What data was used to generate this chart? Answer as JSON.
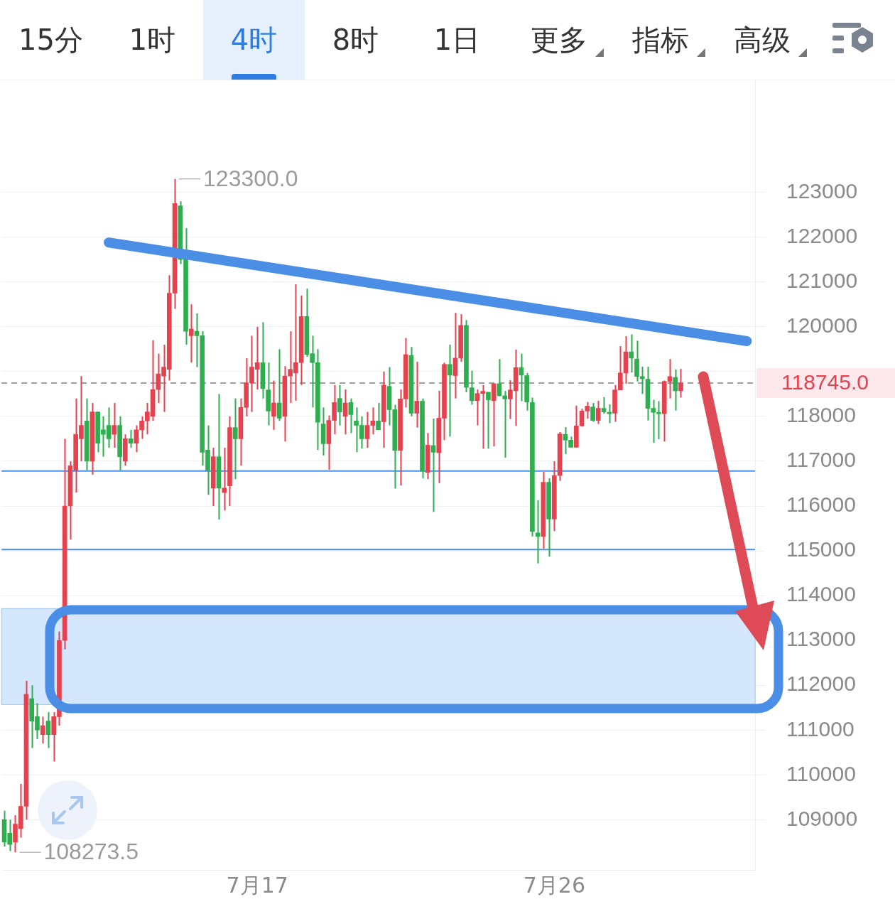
{
  "chart_data": {
    "type": "candlestick",
    "annotations": [
      "15分",
      "1时",
      "4时",
      "8时",
      "1日",
      "更多",
      "指标",
      "高级",
      "123300.0",
      "108273.5"
    ],
    "categories": [
      null,
      null,
      null,
      null,
      null,
      null,
      null,
      null,
      null,
      null,
      null,
      null,
      null,
      null,
      null,
      null,
      null,
      null,
      null,
      null,
      null,
      null,
      null,
      null,
      null,
      null,
      null,
      null,
      null,
      null,
      null,
      null,
      null,
      null,
      null,
      null,
      null,
      null,
      null,
      null,
      null,
      null,
      null,
      null,
      null,
      null,
      "7月17",
      null,
      null,
      null,
      null,
      null,
      null,
      null,
      null,
      null,
      null,
      null,
      null,
      null,
      null,
      null,
      null,
      null,
      null,
      null,
      null,
      null,
      null,
      null,
      null,
      null,
      null,
      null,
      null,
      null,
      null,
      null,
      null,
      null,
      null,
      null,
      null,
      null,
      null,
      null,
      null,
      null,
      null,
      null,
      null,
      null,
      null,
      null,
      null,
      null,
      null,
      null,
      null,
      null,
      "7月26",
      null,
      null,
      null,
      null,
      null,
      null,
      null,
      null,
      null,
      null,
      null,
      null,
      null,
      null,
      null,
      null,
      null,
      null,
      null,
      null,
      null,
      null,
      null,
      null,
      null,
      null,
      null,
      null,
      null,
      null,
      null,
      null,
      null,
      null,
      null,
      null
    ],
    "ohlc": [
      [
        109000,
        109200,
        108400,
        108500
      ],
      [
        108700,
        109000,
        108300,
        108450
      ],
      [
        108500,
        109100,
        108273.5,
        108900
      ],
      [
        108800,
        109800,
        108600,
        109300
      ],
      [
        109300,
        112100,
        109000,
        111800
      ],
      [
        111700,
        112000,
        110600,
        111200
      ],
      [
        111300,
        111600,
        110800,
        111000
      ],
      [
        110900,
        111300,
        110700,
        111100
      ],
      [
        111200,
        111400,
        110600,
        110900
      ],
      [
        110900,
        111400,
        110300,
        111300
      ],
      [
        111300,
        113200,
        111100,
        113000
      ],
      [
        113000,
        117500,
        112800,
        116000
      ],
      [
        116000,
        117000,
        115250,
        116900
      ],
      [
        116800,
        118400,
        116300,
        117600
      ],
      [
        117500,
        118900,
        117000,
        117800
      ],
      [
        117900,
        118400,
        116800,
        117000
      ],
      [
        117000,
        118300,
        116700,
        118100
      ],
      [
        118100,
        118100,
        117200,
        117400
      ],
      [
        117700,
        118000,
        117100,
        117600
      ],
      [
        117800,
        118200,
        117300,
        117500
      ],
      [
        117600,
        118300,
        117300,
        117800
      ],
      [
        117800,
        118000,
        116800,
        117100
      ],
      [
        117000,
        117600,
        116900,
        117500
      ],
      [
        117500,
        117700,
        117300,
        117400
      ],
      [
        117400,
        117800,
        117200,
        117700
      ],
      [
        117700,
        118000,
        117500,
        117900
      ],
      [
        117900,
        118300,
        117600,
        118100
      ],
      [
        118000,
        119700,
        117900,
        118600
      ],
      [
        118600,
        119400,
        118300,
        118950
      ],
      [
        118900,
        119600,
        118100,
        119100
      ],
      [
        119050,
        121150,
        118800,
        120750
      ],
      [
        120750,
        123300,
        120400,
        122750
      ],
      [
        122700,
        122800,
        121400,
        121500
      ],
      [
        121700,
        122200,
        119600,
        119900
      ],
      [
        119800,
        120500,
        119200,
        119950
      ],
      [
        119900,
        120300,
        119100,
        119800
      ],
      [
        119800,
        119900,
        116900,
        117200
      ],
      [
        117250,
        117800,
        116250,
        116800
      ],
      [
        116400,
        117300,
        116000,
        117100
      ],
      [
        117100,
        118500,
        115700,
        116400
      ],
      [
        116300,
        117300,
        115900,
        116400
      ],
      [
        116450,
        118000,
        116000,
        117750
      ],
      [
        117750,
        118400,
        116600,
        117500
      ],
      [
        117500,
        118400,
        116900,
        118200
      ],
      [
        118200,
        119300,
        118000,
        118750
      ],
      [
        118750,
        119800,
        118100,
        119100
      ],
      [
        119050,
        120000,
        118600,
        119200
      ],
      [
        119200,
        120100,
        118400,
        118620
      ],
      [
        118590,
        119200,
        117800,
        118120
      ],
      [
        118000,
        118800,
        117700,
        118300
      ],
      [
        118300,
        119500,
        117900,
        117960
      ],
      [
        118000,
        119120,
        117440,
        118900
      ],
      [
        118900,
        119900,
        118300,
        119050
      ],
      [
        118970,
        120950,
        118350,
        119200
      ],
      [
        119200,
        120700,
        118700,
        120230
      ],
      [
        120230,
        120850,
        119330,
        119380
      ],
      [
        119400,
        119800,
        118200,
        119200
      ],
      [
        119200,
        119500,
        117250,
        117870
      ],
      [
        117830,
        118200,
        117130,
        117390
      ],
      [
        117390,
        118020,
        116810,
        117910
      ],
      [
        117910,
        118700,
        117600,
        118310
      ],
      [
        118400,
        118700,
        117800,
        118100
      ],
      [
        118000,
        118600,
        117600,
        118300
      ],
      [
        118310,
        118400,
        117630,
        118040
      ],
      [
        117900,
        118200,
        117200,
        117800
      ],
      [
        117800,
        118000,
        117280,
        117500
      ],
      [
        117500,
        118100,
        117300,
        117800
      ],
      [
        117800,
        118200,
        117600,
        117900
      ],
      [
        117900,
        118300,
        117700,
        117700
      ],
      [
        117880,
        119000,
        117300,
        118700
      ],
      [
        118670,
        119100,
        117800,
        118150
      ],
      [
        118150,
        118260,
        116390,
        117240
      ],
      [
        117240,
        118600,
        116460,
        118390
      ],
      [
        118390,
        119750,
        118200,
        119380
      ],
      [
        119360,
        119550,
        118000,
        118070
      ],
      [
        118070,
        119220,
        117750,
        118340
      ],
      [
        118340,
        118400,
        116620,
        116780
      ],
      [
        116750,
        117630,
        116600,
        117360
      ],
      [
        117350,
        117950,
        115870,
        117200
      ],
      [
        117190,
        118570,
        116510,
        117960
      ],
      [
        117960,
        119200,
        117470,
        119160
      ],
      [
        119160,
        119600,
        117550,
        118920
      ],
      [
        118910,
        120310,
        118400,
        119300
      ],
      [
        119300,
        120280,
        119220,
        120030
      ],
      [
        120030,
        120150,
        118540,
        118650
      ],
      [
        118640,
        119020,
        118260,
        118350
      ],
      [
        118350,
        118600,
        117800,
        118510
      ],
      [
        118510,
        118700,
        117280,
        118560
      ],
      [
        118540,
        118540,
        117280,
        118370
      ],
      [
        118350,
        118730,
        117330,
        118730
      ],
      [
        118730,
        119280,
        118450,
        118460
      ],
      [
        118460,
        118570,
        117080,
        118390
      ],
      [
        118390,
        118810,
        117940,
        118590
      ],
      [
        118570,
        119490,
        117790,
        119090
      ],
      [
        119090,
        119400,
        118340,
        118920
      ],
      [
        118910,
        118970,
        118130,
        118320
      ],
      [
        118310,
        118420,
        115320,
        115430
      ],
      [
        115400,
        116130,
        114720,
        115320
      ],
      [
        115320,
        116760,
        115050,
        116530
      ],
      [
        116530,
        116620,
        114870,
        115710
      ],
      [
        115710,
        117000,
        115440,
        116680
      ],
      [
        116680,
        117650,
        116560,
        117610
      ],
      [
        117600,
        117760,
        117160,
        117470
      ],
      [
        117470,
        117550,
        117310,
        117310
      ],
      [
        117310,
        118240,
        117310,
        117790
      ],
      [
        117790,
        118170,
        117770,
        118120
      ],
      [
        118120,
        118320,
        117950,
        118230
      ],
      [
        118210,
        118300,
        117880,
        117910
      ],
      [
        117910,
        118350,
        117830,
        118180
      ],
      [
        118180,
        118430,
        118060,
        118100
      ],
      [
        118080,
        118270,
        117850,
        118060
      ],
      [
        118070,
        118700,
        117880,
        118590
      ],
      [
        118590,
        119570,
        118590,
        118970
      ],
      [
        118970,
        119790,
        118730,
        119440
      ],
      [
        119440,
        119830,
        118980,
        119300
      ],
      [
        119280,
        119690,
        118780,
        118890
      ],
      [
        118890,
        119110,
        118500,
        118840
      ],
      [
        118830,
        119110,
        117910,
        118180
      ],
      [
        118180,
        118370,
        117410,
        118090
      ],
      [
        118090,
        118340,
        117490,
        118060
      ],
      [
        118060,
        118800,
        117440,
        118780
      ],
      [
        118780,
        119280,
        118400,
        118890
      ],
      [
        118870,
        119050,
        118130,
        118570
      ],
      [
        118570,
        119060,
        118420,
        118745
      ],
      null,
      null,
      null,
      null,
      null,
      null,
      null,
      null,
      null,
      null,
      null,
      null,
      null
    ],
    "colors": [
      "#2fae4f",
      "#2fae4f",
      "#e5424f",
      "#e5424f",
      "#e5424f",
      "#2fae4f",
      "#2fae4f",
      "#e5424f",
      "#2fae4f",
      "#e5424f",
      "#e5424f",
      "#e5424f",
      "#e5424f",
      "#e5424f",
      "#e5424f",
      "#2fae4f",
      "#e5424f",
      "#2fae4f",
      "#2fae4f",
      "#2fae4f",
      "#e5424f",
      "#2fae4f",
      "#e5424f",
      "#2fae4f",
      "#e5424f",
      "#e5424f",
      "#e5424f",
      "#e5424f",
      "#e5424f",
      "#e5424f",
      "#e5424f",
      "#e5424f",
      "#2fae4f",
      "#2fae4f",
      "#e5424f",
      "#2fae4f",
      "#2fae4f",
      "#2fae4f",
      "#e5424f",
      "#2fae4f",
      "#e5424f",
      "#e5424f",
      "#2fae4f",
      "#e5424f",
      "#e5424f",
      "#e5424f",
      "#e5424f",
      "#2fae4f",
      "#2fae4f",
      "#e5424f",
      "#2fae4f",
      "#e5424f",
      "#e5424f",
      "#e5424f",
      "#e5424f",
      "#2fae4f",
      "#2fae4f",
      "#2fae4f",
      "#2fae4f",
      "#e5424f",
      "#e5424f",
      "#2fae4f",
      "#e5424f",
      "#2fae4f",
      "#2fae4f",
      "#2fae4f",
      "#e5424f",
      "#e5424f",
      "#2fae4f",
      "#e5424f",
      "#2fae4f",
      "#2fae4f",
      "#e5424f",
      "#e5424f",
      "#2fae4f",
      "#e5424f",
      "#2fae4f",
      "#e5424f",
      "#2fae4f",
      "#e5424f",
      "#e5424f",
      "#2fae4f",
      "#e5424f",
      "#e5424f",
      "#2fae4f",
      "#2fae4f",
      "#e5424f",
      "#e5424f",
      "#2fae4f",
      "#e5424f",
      "#2fae4f",
      "#2fae4f",
      "#e5424f",
      "#e5424f",
      "#2fae4f",
      "#2fae4f",
      "#2fae4f",
      "#2fae4f",
      "#e5424f",
      "#2fae4f",
      "#e5424f",
      "#e5424f",
      "#2fae4f",
      "#2fae4f",
      "#e5424f",
      "#e5424f",
      "#e5424f",
      "#2fae4f",
      "#e5424f",
      "#2fae4f",
      "#2fae4f",
      "#e5424f",
      "#e5424f",
      "#e5424f",
      "#2fae4f",
      "#2fae4f",
      "#2fae4f",
      "#2fae4f",
      "#2fae4f",
      "#2fae4f",
      "#e5424f",
      "#e5424f",
      "#2fae4f",
      "#e5424f",
      null,
      null,
      null,
      null,
      null,
      null,
      null,
      null,
      null,
      null,
      null,
      null,
      null
    ],
    "ylim": [
      107880,
      125500
    ],
    "yticks": [
      109000,
      110000,
      111000,
      112000,
      113000,
      114000,
      115000,
      116000,
      117000,
      118000,
      {
        "value": 119000,
        "label": null
      },
      120000,
      121000,
      122000,
      123000
    ],
    "grid": "y",
    "ref_lines": [
      {
        "axis": "y",
        "value": 118745,
        "label": "118745.0",
        "color": "#9e9e9e",
        "line_style": "dashed"
      },
      {
        "axis": "y",
        "value": 116780,
        "color": "#4a90e2",
        "line_style": "solid"
      },
      {
        "axis": "y",
        "value": 115030,
        "color": "#4a90e2",
        "line_style": "solid"
      }
    ],
    "bands": [
      {
        "axis": "y",
        "from": 111570,
        "to": 113710,
        "color": "#d4e7fd"
      }
    ],
    "series": [
      {
        "type": "line",
        "color": "#4a8ee6",
        "values": [
          null,
          null,
          null,
          null,
          null,
          null,
          null,
          null,
          null,
          null,
          null,
          null,
          null,
          null,
          null,
          null,
          null,
          null,
          null,
          121880,
          null,
          null,
          null,
          null,
          null,
          null,
          null,
          null,
          null,
          null,
          null,
          null,
          null,
          null,
          null,
          null,
          null,
          null,
          null,
          null,
          null,
          null,
          null,
          null,
          null,
          null,
          null,
          null,
          null,
          null,
          null,
          null,
          null,
          null,
          null,
          null,
          null,
          null,
          null,
          null,
          null,
          null,
          null,
          null,
          null,
          null,
          null,
          null,
          null,
          null,
          null,
          null,
          null,
          null,
          null,
          null,
          null,
          null,
          null,
          null,
          null,
          null,
          null,
          null,
          null,
          null,
          null,
          null,
          null,
          null,
          null,
          null,
          null,
          null,
          null,
          null,
          null,
          null,
          null,
          null,
          null,
          null,
          null,
          null,
          null,
          null,
          null,
          null,
          null,
          null,
          null,
          null,
          null,
          null,
          null,
          null,
          null,
          null,
          null,
          null,
          null,
          null,
          null,
          null,
          null,
          null,
          null,
          null,
          null,
          null,
          null,
          null,
          null,
          null,
          null,
          119680,
          null
        ]
      }
    ]
  }
}
